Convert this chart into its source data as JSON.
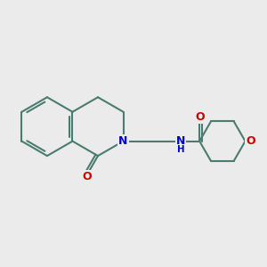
{
  "bg_color": "#ebebeb",
  "bond_color": "#4a7c6f",
  "bond_width": 1.5,
  "atom_colors": {
    "N": "#0000cc",
    "O": "#cc0000"
  },
  "font_size_atom": 9,
  "figsize": [
    3.0,
    3.0
  ],
  "dpi": 100
}
